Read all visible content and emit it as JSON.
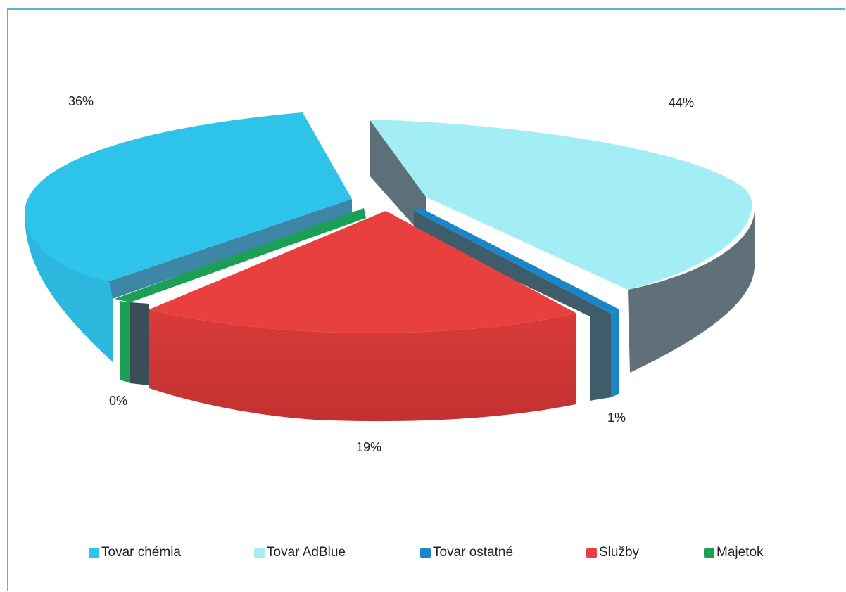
{
  "chart_data": {
    "type": "pie",
    "style": "3d-exploded",
    "slices": [
      {
        "name": "Tovar chémia",
        "value": 36,
        "label": "36%",
        "color": "#2ec4ea"
      },
      {
        "name": "Tovar AdBlue",
        "value": 44,
        "label": "44%",
        "color": "#a3eef5"
      },
      {
        "name": "Tovar ostatné",
        "value": 1,
        "label": "1%",
        "color": "#1a86c8"
      },
      {
        "name": "Služby",
        "value": 19,
        "label": "19%",
        "color": "#e8403f"
      },
      {
        "name": "Majetok",
        "value": 0,
        "label": "0%",
        "color": "#1b9f55"
      }
    ],
    "legend_position": "bottom"
  }
}
